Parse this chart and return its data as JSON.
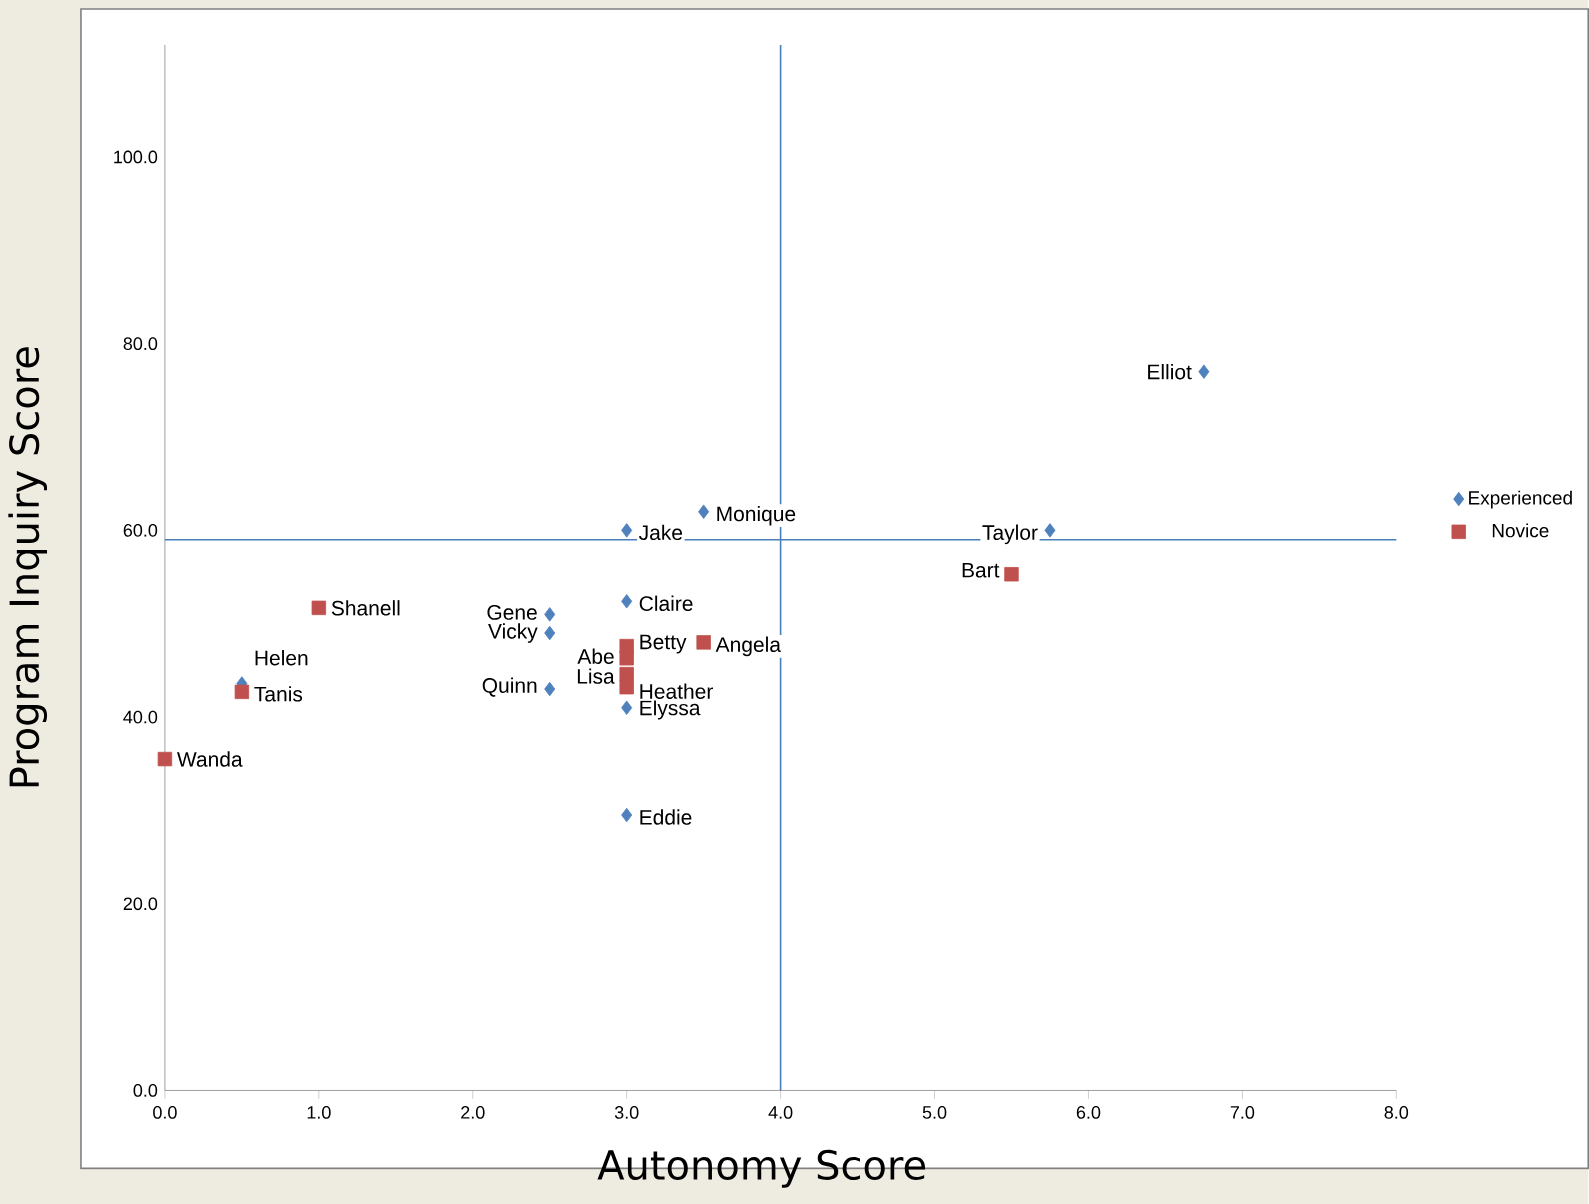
{
  "chart_data": {
    "type": "scatter",
    "xlabel": "Autonomy Score",
    "ylabel": "Program Inquiry Score",
    "xlim": [
      0,
      8
    ],
    "ylim": [
      0,
      112
    ],
    "xticks": [
      {
        "value": 0,
        "label": "0.0"
      },
      {
        "value": 1,
        "label": "1.0"
      },
      {
        "value": 2,
        "label": "2.0"
      },
      {
        "value": 3,
        "label": "3.0"
      },
      {
        "value": 4,
        "label": "4.0"
      },
      {
        "value": 5,
        "label": "5.0"
      },
      {
        "value": 6,
        "label": "6.0"
      },
      {
        "value": 7,
        "label": "7.0"
      },
      {
        "value": 8,
        "label": "8.0"
      }
    ],
    "yticks": [
      {
        "value": 0,
        "label": "0.0"
      },
      {
        "value": 20,
        "label": "20.0"
      },
      {
        "value": 40,
        "label": "40.0"
      },
      {
        "value": 60,
        "label": "60.0"
      },
      {
        "value": 80,
        "label": "80.0"
      },
      {
        "value": 100,
        "label": "100.0"
      }
    ],
    "legend": "right",
    "grid": false,
    "series": [
      {
        "name": "Experienced",
        "color": "#4f81bd",
        "marker": "diamond",
        "x": [
          6.75,
          3.5,
          3.0,
          5.75,
          3.0,
          2.5,
          2.5,
          2.5,
          3.0,
          3.0,
          0.5
        ],
        "values": [
          77,
          62,
          60,
          60,
          52.4,
          51,
          49,
          43,
          41,
          29.5,
          43.6
        ]
      },
      {
        "name": "Novice",
        "color": "#c0504d",
        "marker": "square",
        "x": [
          1.0,
          0.5,
          0.0,
          5.5,
          3.5,
          3.0,
          3.0,
          3.0,
          3.0
        ],
        "values": [
          51.7,
          42.7,
          35.5,
          55.3,
          48,
          47.6,
          46.3,
          44.6,
          43.2
        ]
      }
    ],
    "ref_lines": [
      {
        "axis": "y",
        "value": 59,
        "color": "#4a7ebb"
      },
      {
        "axis": "x",
        "value": 4,
        "color": "#4a7ebb"
      }
    ],
    "annotations": [
      {
        "text": "Elliot",
        "x": 6.75,
        "y": 77
      },
      {
        "text": "Monique",
        "x": 3.5,
        "y": 62
      },
      {
        "text": "Jake",
        "x": 3.0,
        "y": 60
      },
      {
        "text": "Taylor",
        "x": 5.75,
        "y": 60
      },
      {
        "text": "Claire",
        "x": 3.0,
        "y": 52.4
      },
      {
        "text": "Gene",
        "x": 2.5,
        "y": 51
      },
      {
        "text": "Vicky",
        "x": 2.5,
        "y": 49
      },
      {
        "text": "Quinn",
        "x": 2.5,
        "y": 43
      },
      {
        "text": "Elyssa",
        "x": 3.0,
        "y": 41
      },
      {
        "text": "Eddie",
        "x": 3.0,
        "y": 29.5
      },
      {
        "text": "Helen",
        "x": 0.5,
        "y": 43.6
      },
      {
        "text": "Shanell",
        "x": 1.0,
        "y": 51.7
      },
      {
        "text": "Tanis",
        "x": 0.5,
        "y": 42.7
      },
      {
        "text": "Wanda",
        "x": 0.0,
        "y": 35.5
      },
      {
        "text": "Bart",
        "x": 5.5,
        "y": 55.3
      },
      {
        "text": "Angela",
        "x": 3.5,
        "y": 48
      },
      {
        "text": "Betty",
        "x": 3.0,
        "y": 47.6
      },
      {
        "text": "Abe",
        "x": 3.0,
        "y": 46.3
      },
      {
        "text": "Lisa",
        "x": 3.0,
        "y": 44.6
      },
      {
        "text": "Heather",
        "x": 3.0,
        "y": 43.2
      }
    ]
  }
}
